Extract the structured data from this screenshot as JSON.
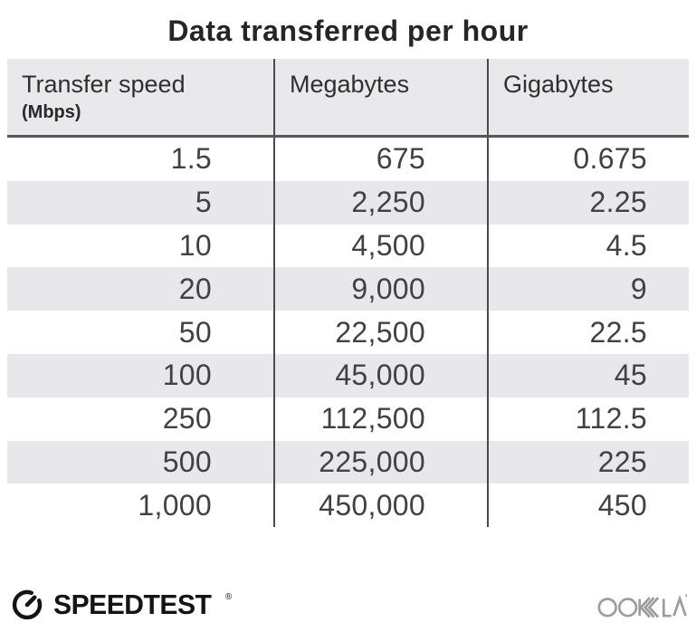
{
  "title": "Data transferred per hour",
  "table": {
    "columns": [
      {
        "label": "Transfer speed",
        "sublabel": "(Mbps)"
      },
      {
        "label": "Megabytes"
      },
      {
        "label": "Gigabytes"
      }
    ],
    "rows": [
      [
        "1.5",
        "675",
        "0.675"
      ],
      [
        "5",
        "2,250",
        "2.25"
      ],
      [
        "10",
        "4,500",
        "4.5"
      ],
      [
        "20",
        "9,000",
        "9"
      ],
      [
        "50",
        "22,500",
        "22.5"
      ],
      [
        "100",
        "45,000",
        "45"
      ],
      [
        "250",
        "112,500",
        "112.5"
      ],
      [
        "500",
        "225,000",
        "225"
      ],
      [
        "1,000",
        "450,000",
        "450"
      ]
    ]
  },
  "footer": {
    "speedtest_label": "SPEEDTEST",
    "speedtest_trademark": "®",
    "ookla_label": "OOKLA"
  },
  "colors": {
    "header_bg": "#e9e9ec",
    "row_alt_bg": "#e8e8ec",
    "divider": "#4a4a4c",
    "header_underline": "#56565a",
    "title_text": "#262626",
    "number_text": "#414143",
    "speedtest_black": "#141414",
    "ookla_gray": "#9d9d9d"
  },
  "chart_data": {
    "type": "table",
    "title": "Data transferred per hour",
    "columns": [
      "Transfer speed (Mbps)",
      "Megabytes",
      "Gigabytes"
    ],
    "rows": [
      [
        1.5,
        675,
        0.675
      ],
      [
        5,
        2250,
        2.25
      ],
      [
        10,
        4500,
        4.5
      ],
      [
        20,
        9000,
        9
      ],
      [
        50,
        22500,
        22.5
      ],
      [
        100,
        45000,
        45
      ],
      [
        250,
        112500,
        112.5
      ],
      [
        500,
        225000,
        225
      ],
      [
        1000,
        450000,
        450
      ]
    ],
    "layout": {
      "zebra_striping": true,
      "numbers_right_aligned": true
    }
  }
}
